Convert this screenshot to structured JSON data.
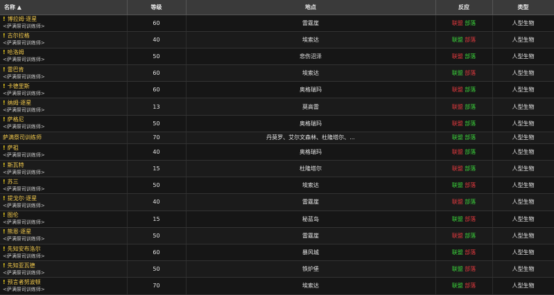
{
  "headers": {
    "name": "名称 ▲",
    "level": "等级",
    "location": "地点",
    "reaction": "反应",
    "type": "类型"
  },
  "colors": {
    "hostile": "#e0393e",
    "friendly": "#3bd23b",
    "name": "#f2c94c"
  },
  "rows": [
    {
      "quest": true,
      "name": "博拉姆·逐星",
      "sub": "<萨满祭司训练师>",
      "level": "60",
      "location": "雷霆崖",
      "a": "联盟",
      "h": "部落",
      "ac": "r",
      "hc": "g",
      "type": "人型生物"
    },
    {
      "quest": true,
      "name": "古尔拉格",
      "sub": "<萨满祭司训练师>",
      "level": "40",
      "location": "埃索达",
      "a": "联盟",
      "h": "部落",
      "ac": "g",
      "hc": "r",
      "type": "人型生物"
    },
    {
      "quest": true,
      "name": "哈洛姆",
      "sub": "<萨满祭司训练师>",
      "level": "50",
      "location": "悲伤沼泽",
      "a": "联盟",
      "h": "部落",
      "ac": "r",
      "hc": "g",
      "type": "人型生物"
    },
    {
      "quest": true,
      "name": "雷巴肯",
      "sub": "<萨满祭司训练师>",
      "level": "60",
      "location": "埃索达",
      "a": "联盟",
      "h": "部落",
      "ac": "g",
      "hc": "r",
      "type": "人型生物"
    },
    {
      "quest": true,
      "name": "卡德里斯",
      "sub": "<萨满祭司训练师>",
      "level": "60",
      "location": "奥格瑞玛",
      "a": "联盟",
      "h": "部落",
      "ac": "r",
      "hc": "g",
      "type": "人型生物"
    },
    {
      "quest": true,
      "name": "纳姆·逐星",
      "sub": "<萨满祭司训练师>",
      "level": "13",
      "location": "莫高雷",
      "a": "联盟",
      "h": "部落",
      "ac": "r",
      "hc": "g",
      "type": "人型生物"
    },
    {
      "quest": true,
      "name": "萨格尼",
      "sub": "<萨满祭司训练师>",
      "level": "50",
      "location": "奥格瑞玛",
      "a": "联盟",
      "h": "部落",
      "ac": "r",
      "hc": "g",
      "type": "人型生物"
    },
    {
      "quest": false,
      "name": "萨满祭司训练师",
      "sub": "",
      "level": "70",
      "location": "丹莫罗、艾尔文森林、杜隆塔尔、...",
      "a": "联盟",
      "h": "部落",
      "ac": "g",
      "hc": "g",
      "type": "人型生物"
    },
    {
      "quest": true,
      "name": "萨祖",
      "sub": "<萨满祭司训练师>",
      "level": "40",
      "location": "奥格瑞玛",
      "a": "联盟",
      "h": "部落",
      "ac": "r",
      "hc": "g",
      "type": "人型生物"
    },
    {
      "quest": true,
      "name": "斯瓦特",
      "sub": "<萨满祭司训练师>",
      "level": "15",
      "location": "杜隆塔尔",
      "a": "联盟",
      "h": "部落",
      "ac": "r",
      "hc": "g",
      "type": "人型生物"
    },
    {
      "quest": true,
      "name": "苏三",
      "sub": "<萨满祭司训练师>",
      "level": "50",
      "location": "埃索达",
      "a": "联盟",
      "h": "部落",
      "ac": "g",
      "hc": "r",
      "type": "人型生物"
    },
    {
      "quest": true,
      "name": "提戈尔·逐星",
      "sub": "<萨满祭司训练师>",
      "level": "40",
      "location": "雷霆崖",
      "a": "联盟",
      "h": "部落",
      "ac": "r",
      "hc": "g",
      "type": "人型生物"
    },
    {
      "quest": true,
      "name": "图伦",
      "sub": "<萨满祭司训练师>",
      "level": "15",
      "location": "秘蓝岛",
      "a": "联盟",
      "h": "部落",
      "ac": "g",
      "hc": "r",
      "type": "人型生物"
    },
    {
      "quest": true,
      "name": "熊恩·逐星",
      "sub": "<萨满祭司训练师>",
      "level": "50",
      "location": "雷霆崖",
      "a": "联盟",
      "h": "部落",
      "ac": "r",
      "hc": "g",
      "type": "人型生物"
    },
    {
      "quest": true,
      "name": "先知安布洛尔",
      "sub": "<萨满祭司训练师>",
      "level": "60",
      "location": "暴风城",
      "a": "联盟",
      "h": "部落",
      "ac": "g",
      "hc": "r",
      "type": "人型生物"
    },
    {
      "quest": true,
      "name": "先知亚瓦德",
      "sub": "<萨满祭司训练师>",
      "level": "50",
      "location": "铁炉堡",
      "a": "联盟",
      "h": "部落",
      "ac": "g",
      "hc": "r",
      "type": "人型生物"
    },
    {
      "quest": true,
      "name": "预言者努波顿",
      "sub": "<萨满祭司训练师>",
      "level": "70",
      "location": "埃索达",
      "a": "联盟",
      "h": "部落",
      "ac": "g",
      "hc": "r",
      "type": "人型生物"
    }
  ]
}
